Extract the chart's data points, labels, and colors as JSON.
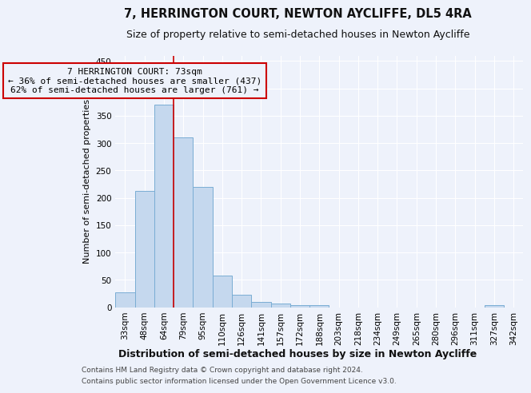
{
  "title": "7, HERRINGTON COURT, NEWTON AYCLIFFE, DL5 4RA",
  "subtitle": "Size of property relative to semi-detached houses in Newton Aycliffe",
  "xlabel": "Distribution of semi-detached houses by size in Newton Aycliffe",
  "ylabel": "Number of semi-detached properties",
  "categories": [
    "33sqm",
    "48sqm",
    "64sqm",
    "79sqm",
    "95sqm",
    "110sqm",
    "126sqm",
    "141sqm",
    "157sqm",
    "172sqm",
    "188sqm",
    "203sqm",
    "218sqm",
    "234sqm",
    "249sqm",
    "265sqm",
    "280sqm",
    "296sqm",
    "311sqm",
    "327sqm",
    "342sqm"
  ],
  "values": [
    27,
    212,
    370,
    310,
    220,
    57,
    22,
    9,
    6,
    4,
    4,
    0,
    0,
    0,
    0,
    0,
    0,
    0,
    0,
    4,
    0
  ],
  "bar_color": "#c5d8ee",
  "bar_edge_color": "#7aadd4",
  "marker_line_color": "#cc0000",
  "annotation_box_edge_color": "#cc0000",
  "ylim": [
    0,
    460
  ],
  "yticks": [
    0,
    50,
    100,
    150,
    200,
    250,
    300,
    350,
    400,
    450
  ],
  "footer_line1": "Contains HM Land Registry data © Crown copyright and database right 2024.",
  "footer_line2": "Contains public sector information licensed under the Open Government Licence v3.0.",
  "background_color": "#eef2fb",
  "grid_color": "#ffffff",
  "title_fontsize": 10.5,
  "subtitle_fontsize": 9,
  "xlabel_fontsize": 9,
  "ylabel_fontsize": 8,
  "tick_fontsize": 7.5,
  "footer_fontsize": 6.5,
  "annotation_line1": "7 HERRINGTON COURT: 73sqm",
  "annotation_line2": "← 36% of semi-detached houses are smaller (437)",
  "annotation_line3": "62% of semi-detached houses are larger (761) →"
}
